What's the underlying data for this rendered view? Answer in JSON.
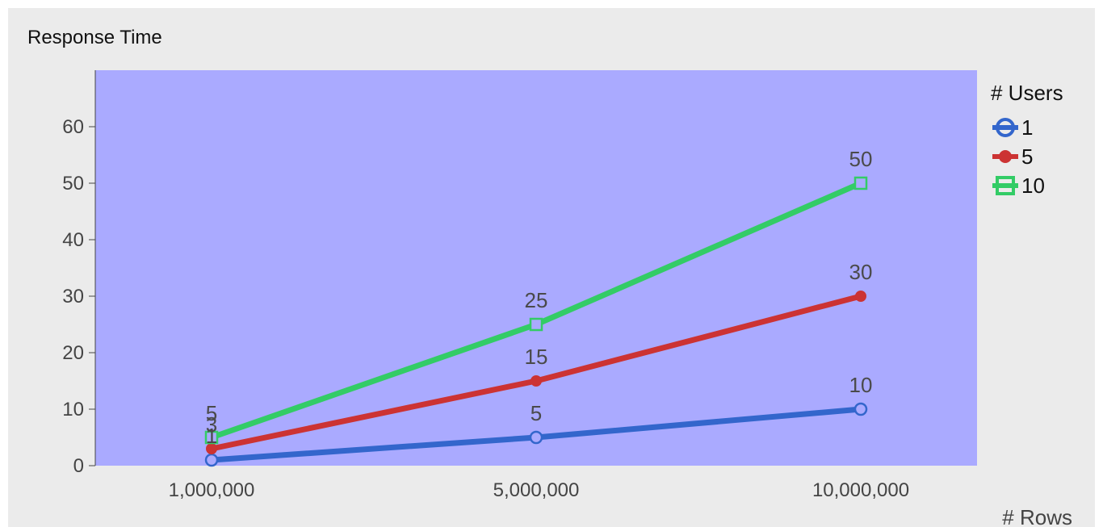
{
  "chart_data": {
    "type": "line",
    "title": "Response Time",
    "xlabel": "# Rows",
    "ylabel": "",
    "categories": [
      "1,000,000",
      "5,000,000",
      "10,000,000"
    ],
    "ylim": [
      0,
      70
    ],
    "yticks": [
      0,
      10,
      20,
      30,
      40,
      50,
      60
    ],
    "grid": false,
    "legend": {
      "title": "# Users",
      "position": "right"
    },
    "series": [
      {
        "name": "1",
        "values": [
          1,
          5,
          10
        ],
        "color": "#3366cc",
        "marker": "open-circle",
        "labels": [
          "1",
          "5",
          "10"
        ]
      },
      {
        "name": "5",
        "values": [
          3,
          15,
          30
        ],
        "color": "#cc3333",
        "marker": "filled-circle",
        "labels": [
          "3",
          "15",
          "30"
        ]
      },
      {
        "name": "10",
        "values": [
          5,
          25,
          50
        ],
        "color": "#33cc66",
        "marker": "open-square",
        "labels": [
          "5",
          "25",
          "50"
        ]
      }
    ],
    "plot_background": "#aaaaff",
    "background": "#ebebeb"
  }
}
